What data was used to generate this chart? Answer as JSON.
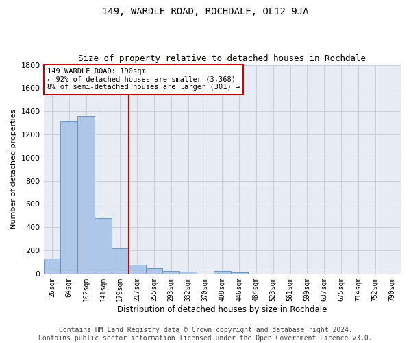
{
  "title": "149, WARDLE ROAD, ROCHDALE, OL12 9JA",
  "subtitle": "Size of property relative to detached houses in Rochdale",
  "xlabel": "Distribution of detached houses by size in Rochdale",
  "ylabel": "Number of detached properties",
  "categories": [
    "26sqm",
    "64sqm",
    "102sqm",
    "141sqm",
    "179sqm",
    "217sqm",
    "255sqm",
    "293sqm",
    "332sqm",
    "370sqm",
    "408sqm",
    "446sqm",
    "484sqm",
    "523sqm",
    "561sqm",
    "599sqm",
    "637sqm",
    "675sqm",
    "714sqm",
    "752sqm",
    "790sqm"
  ],
  "values": [
    130,
    1310,
    1360,
    480,
    220,
    75,
    45,
    25,
    15,
    0,
    20,
    10,
    0,
    0,
    0,
    0,
    0,
    0,
    0,
    0,
    0
  ],
  "bar_color": "#aec6e8",
  "bar_edgecolor": "#5b8db8",
  "vline_x": 4.5,
  "vline_color": "#cc0000",
  "annotation_text": "149 WARDLE ROAD: 190sqm\n← 92% of detached houses are smaller (3,368)\n8% of semi-detached houses are larger (301) →",
  "annotation_box_color": "#cc0000",
  "ylim": [
    0,
    1800
  ],
  "yticks": [
    0,
    200,
    400,
    600,
    800,
    1000,
    1200,
    1400,
    1600,
    1800
  ],
  "grid_color": "#c8d0dc",
  "bg_color": "#e8edf5",
  "footer": "Contains HM Land Registry data © Crown copyright and database right 2024.\nContains public sector information licensed under the Open Government Licence v3.0.",
  "title_fontsize": 10,
  "subtitle_fontsize": 9,
  "footer_fontsize": 7,
  "ylabel_fontsize": 8,
  "xlabel_fontsize": 8.5,
  "ytick_fontsize": 8,
  "xtick_fontsize": 7
}
